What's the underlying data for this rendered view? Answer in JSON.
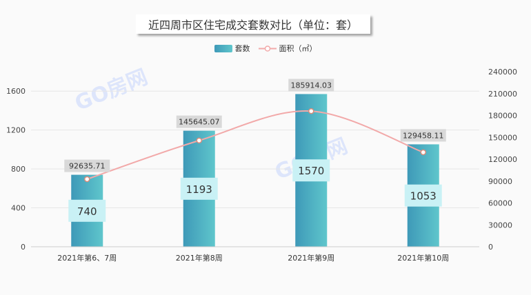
{
  "chart_data": {
    "type": "bar",
    "title": "近四周市区住宅成交套数对比（单位：套）",
    "categories": [
      "2021年第6、7周",
      "2021年第8周",
      "2021年第9周",
      "2021年第10周"
    ],
    "series": [
      {
        "name": "套数",
        "type": "bar",
        "axis": "left",
        "values": [
          740,
          1193,
          1570,
          1053
        ],
        "color": "#4bb4c4"
      },
      {
        "name": "面积（㎡）",
        "type": "line",
        "axis": "right",
        "values": [
          92635.71,
          145645.07,
          185914.03,
          129458.11
        ],
        "color": "#f2a9a9"
      }
    ],
    "y_left": {
      "ticks": [
        0,
        400,
        800,
        1200,
        1600
      ],
      "range": [
        0,
        1800
      ]
    },
    "y_right": {
      "ticks": [
        0,
        30000,
        60000,
        90000,
        120000,
        150000,
        180000,
        210000,
        240000
      ],
      "range": [
        0,
        240000
      ]
    },
    "bar_label_bg": "#c9f1f5",
    "line_label_bg": "#d9d9d9",
    "grid": true,
    "legend_position": "top-center"
  },
  "watermark": "GO房网"
}
